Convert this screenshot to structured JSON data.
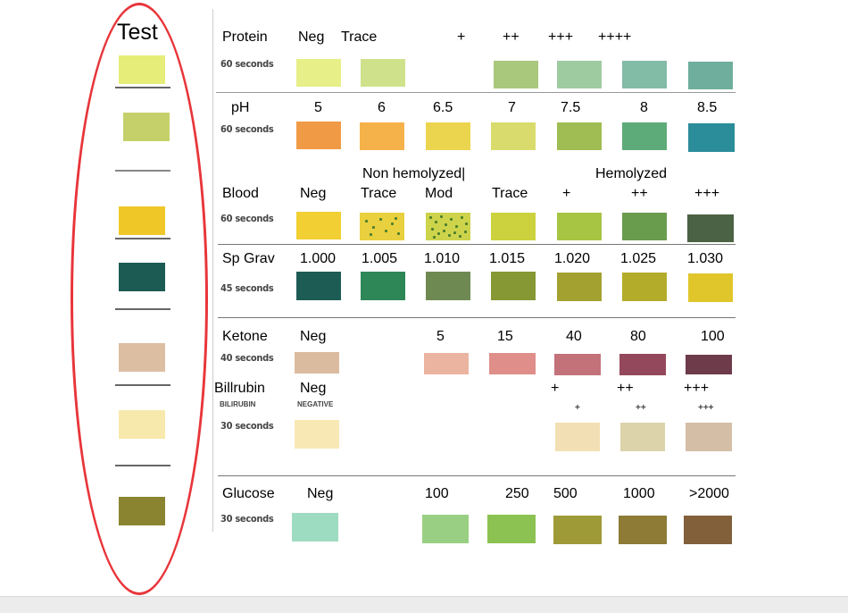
{
  "strip": {
    "title": "Test",
    "pads": [
      "#e6ed78",
      "#c6d06a",
      "#efc828",
      "#1c5a54",
      "#dcbea3",
      "#f7e9ac",
      "#8a8430"
    ]
  },
  "chart": {
    "protein": {
      "name": "Protein",
      "time": "60 seconds",
      "levels": [
        "Neg",
        "Trace",
        "+",
        "++",
        "+++",
        "++++"
      ],
      "colors": [
        "#e7ef88",
        "#cfe28b",
        "#a9c87c",
        "#9fcba0",
        "#82bba6",
        "#6fae9c"
      ]
    },
    "ph": {
      "name": "pH",
      "time": "60 seconds",
      "levels": [
        "5",
        "6",
        "6.5",
        "7",
        "7.5",
        "8",
        "8.5"
      ],
      "colors": [
        "#f19a45",
        "#f6b24a",
        "#ecd54e",
        "#d9dc6c",
        "#9fbd52",
        "#5eab7a",
        "#2b8d9a"
      ]
    },
    "blood": {
      "name": "Blood",
      "time": "60 seconds",
      "group_non_hemolyzed": "Non hemolyzed|",
      "group_hemolyzed": "Hemolyzed",
      "levels": [
        "Neg",
        "Trace",
        "Mod",
        "Trace",
        "+",
        "++",
        "+++"
      ],
      "colors": [
        "#f2cf33",
        "#e8d03e",
        "#cdd34a",
        "#ccd23e",
        "#a7c443",
        "#6a9c4e",
        "#4b6344"
      ]
    },
    "sp_grav": {
      "name": "Sp Grav",
      "time": "45 seconds",
      "levels": [
        "1.000",
        "1.005",
        "1.010",
        "1.015",
        "1.020",
        "1.025",
        "1.030"
      ],
      "colors": [
        "#1d5c55",
        "#2e8757",
        "#6e8a52",
        "#869834",
        "#a3a230",
        "#b3ac2b",
        "#e0c62a"
      ]
    },
    "ketone": {
      "name": "Ketone",
      "time": "40 seconds",
      "levels": [
        "Neg",
        "5",
        "15",
        "40",
        "80",
        "100"
      ],
      "colors": [
        "#dbbba0",
        "#ebb4a0",
        "#df8e8a",
        "#c3727a",
        "#94485c",
        "#6e3b4b"
      ]
    },
    "bilirubin": {
      "name": "Billrubin",
      "sub": "BILIRUBIN",
      "time": "30 seconds",
      "neg_sub": "NEGATIVE",
      "levels": [
        "Neg",
        "+",
        "++",
        "+++"
      ],
      "printed": [
        "+",
        "++",
        "+++"
      ],
      "colors": [
        "#f8e8b4",
        "#f2dfb3",
        "#dcd3ab",
        "#d4bea6"
      ]
    },
    "glucose": {
      "name": "Glucose",
      "time": "30 seconds",
      "levels": [
        "Neg",
        "100",
        "250",
        "500",
        "1000",
        ">2000"
      ],
      "colors": [
        "#9ddcc0",
        "#99cf82",
        "#8cc251",
        "#9e9a38",
        "#8d7b36",
        "#81603a"
      ]
    }
  }
}
